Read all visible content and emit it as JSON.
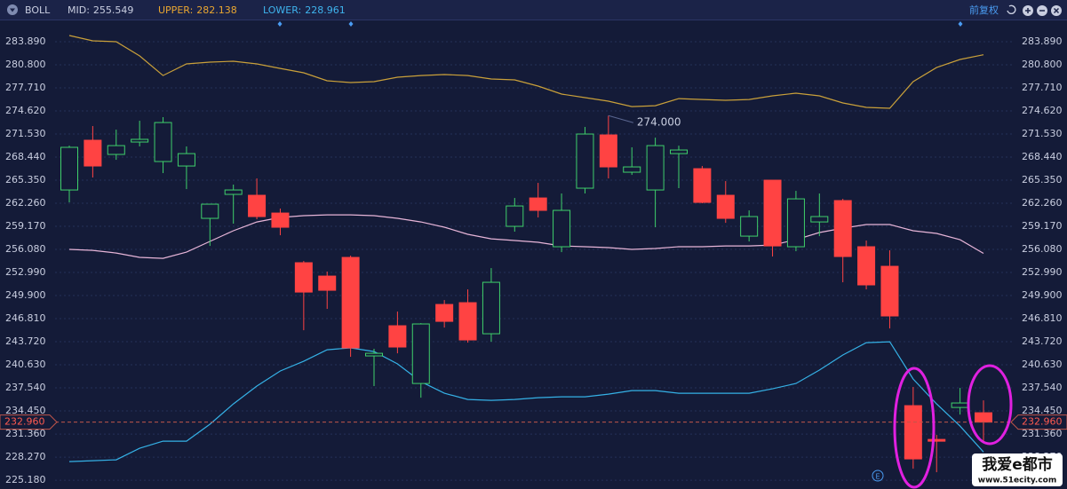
{
  "header": {
    "indicator": "BOLL",
    "items": [
      {
        "label": "MID:",
        "value": 255.549,
        "color": "#c9cee0"
      },
      {
        "label": "UPPER:",
        "value": 282.138,
        "color": "#e9a631"
      },
      {
        "label": "LOWER:",
        "value": 228.961,
        "color": "#3fb4ee"
      }
    ],
    "adjust": "前复权"
  },
  "chart_data": {
    "type": "candlestick",
    "ylim": [
      224,
      286.15
    ],
    "yticks": [
      {
        "value": 283.89,
        "label": "283.890"
      },
      {
        "value": 280.8,
        "label": "280.800"
      },
      {
        "value": 277.71,
        "label": "277.710"
      },
      {
        "value": 274.62,
        "label": "274.620"
      },
      {
        "value": 271.53,
        "label": "271.530"
      },
      {
        "value": 268.44,
        "label": "268.440"
      },
      {
        "value": 265.35,
        "label": "265.350"
      },
      {
        "value": 262.26,
        "label": "262.260"
      },
      {
        "value": 259.17,
        "label": "259.170"
      },
      {
        "value": 256.08,
        "label": "256.080"
      },
      {
        "value": 252.99,
        "label": "252.990"
      },
      {
        "value": 249.9,
        "label": "249.900"
      },
      {
        "value": 246.81,
        "label": "246.810"
      },
      {
        "value": 243.72,
        "label": "243.720"
      },
      {
        "value": 240.63,
        "label": "240.630"
      },
      {
        "value": 237.54,
        "label": "237.540"
      },
      {
        "value": 234.45,
        "label": "234.450"
      },
      {
        "value": 231.36,
        "label": "231.360"
      },
      {
        "value": 228.27,
        "label": "228.270"
      },
      {
        "value": 225.18,
        "label": "225.180"
      }
    ],
    "grid": true,
    "up_color": "#3fd06b",
    "down_color": "#ff4343",
    "candles": {
      "open": [
        264.04,
        270.7,
        268.8,
        270.46,
        267.85,
        267.25,
        260.24,
        263.45,
        263.33,
        260.95,
        254.3,
        252.51,
        255.01,
        241.82,
        245.86,
        238.13,
        248.71,
        248.95,
        244.79,
        259.17,
        262.97,
        256.44,
        264.28,
        271.41,
        266.42,
        264.04,
        268.91,
        266.89,
        263.33,
        257.86,
        265.35,
        256.44,
        259.76,
        262.62,
        256.44,
        253.82,
        235.16,
        230.64,
        234.92,
        234.21
      ],
      "high": [
        269.98,
        272.6,
        272.12,
        273.31,
        273.79,
        269.87,
        262.14,
        264.76,
        265.59,
        261.55,
        254.53,
        253.11,
        255.25,
        242.77,
        247.76,
        246.21,
        249.3,
        250.73,
        253.58,
        262.97,
        264.99,
        263.57,
        272.48,
        274.0,
        269.75,
        271.05,
        269.98,
        267.25,
        265.23,
        261.31,
        265.35,
        263.92,
        263.57,
        262.85,
        257.27,
        255.96,
        237.66,
        231.24,
        237.54,
        235.87
      ],
      "low": [
        262.38,
        265.71,
        268.08,
        269.87,
        266.3,
        264.16,
        256.55,
        259.53,
        260.12,
        257.98,
        245.26,
        248.12,
        241.7,
        237.78,
        242.17,
        236.23,
        245.62,
        243.6,
        243.72,
        258.46,
        260.36,
        255.72,
        263.57,
        265.59,
        266.06,
        259.05,
        264.28,
        262.26,
        259.64,
        257.15,
        255.13,
        255.84,
        257.86,
        251.68,
        250.73,
        245.5,
        226.72,
        226.25,
        233.97,
        230.17
      ],
      "close": [
        269.75,
        267.25,
        269.98,
        270.82,
        273.07,
        268.91,
        262.14,
        264.04,
        260.48,
        259.05,
        250.37,
        250.61,
        242.89,
        242.17,
        243.01,
        246.1,
        246.45,
        243.96,
        251.68,
        261.9,
        261.31,
        261.31,
        271.53,
        267.13,
        267.13,
        269.98,
        269.39,
        262.38,
        260.24,
        260.48,
        256.55,
        262.85,
        260.48,
        255.13,
        251.33,
        247.17,
        228.03,
        230.4,
        235.52,
        232.96
      ]
    },
    "series": [
      {
        "name": "UPPER",
        "color": "#c9a03a",
        "values": [
          284.72,
          284.01,
          283.89,
          281.99,
          279.37,
          280.92,
          281.16,
          281.28,
          280.92,
          280.32,
          279.73,
          278.66,
          278.42,
          278.54,
          279.14,
          279.37,
          279.49,
          279.37,
          278.9,
          278.78,
          277.95,
          276.88,
          276.4,
          275.93,
          275.21,
          275.33,
          276.28,
          276.16,
          276.05,
          276.16,
          276.64,
          277.0,
          276.64,
          275.69,
          275.1,
          274.98,
          278.54,
          280.44,
          281.51,
          282.14
        ]
      },
      {
        "name": "MID",
        "color": "#e7b5d8",
        "values": [
          256.08,
          255.96,
          255.6,
          255.01,
          254.89,
          255.72,
          257.15,
          258.58,
          259.76,
          260.36,
          260.6,
          260.71,
          260.71,
          260.6,
          260.24,
          259.76,
          259.05,
          258.1,
          257.5,
          257.27,
          257.03,
          256.55,
          256.44,
          256.32,
          256.08,
          256.2,
          256.44,
          256.44,
          256.55,
          256.55,
          256.67,
          257.38,
          258.34,
          258.93,
          259.41,
          259.41,
          258.58,
          258.22,
          257.38,
          255.55
        ]
      },
      {
        "name": "LOWER",
        "color": "#35b1e6",
        "values": [
          227.67,
          227.79,
          227.91,
          229.46,
          230.41,
          230.41,
          232.67,
          235.4,
          237.78,
          239.8,
          241.1,
          242.65,
          242.89,
          242.41,
          240.75,
          238.37,
          236.82,
          235.99,
          235.87,
          235.99,
          236.23,
          236.35,
          236.35,
          236.7,
          237.18,
          237.18,
          236.82,
          236.82,
          236.82,
          236.82,
          237.42,
          238.13,
          239.92,
          241.94,
          243.6,
          243.72,
          238.73,
          235.4,
          232.43,
          228.96
        ]
      }
    ],
    "current_price": {
      "value": 232.96,
      "label": "232.960"
    },
    "annotation": {
      "index": 23,
      "value": 274,
      "label": "274.000"
    }
  },
  "watermark": {
    "title": "我爱e都市",
    "url": "www.51ecity.com"
  }
}
